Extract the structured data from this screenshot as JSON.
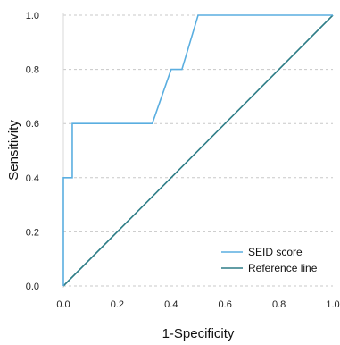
{
  "chart_data": {
    "type": "line",
    "title": "",
    "xlabel": "1-Specificity",
    "ylabel": "Sensitivity",
    "xlim": [
      0,
      1
    ],
    "ylim": [
      0,
      1
    ],
    "x_ticks": [
      "0.0",
      "0.2",
      "0.4",
      "0.6",
      "0.8",
      "1.0"
    ],
    "y_ticks": [
      "0.0",
      "0.2",
      "0.4",
      "0.6",
      "0.8",
      "1.0"
    ],
    "grid": "horizontal dashed",
    "legend_position": "bottom-right",
    "series": [
      {
        "name": "SEID score",
        "color": "#5aaee0",
        "x": [
          0.0,
          0.0,
          0.033,
          0.033,
          0.33,
          0.4,
          0.4,
          0.44,
          0.5,
          1.0
        ],
        "y": [
          0.0,
          0.4,
          0.4,
          0.6,
          0.6,
          0.8,
          0.8,
          0.8,
          1.0,
          1.0
        ]
      },
      {
        "name": "Reference line",
        "color": "#2e7d87",
        "x": [
          0.0,
          1.0
        ],
        "y": [
          0.0,
          1.0
        ]
      }
    ]
  }
}
